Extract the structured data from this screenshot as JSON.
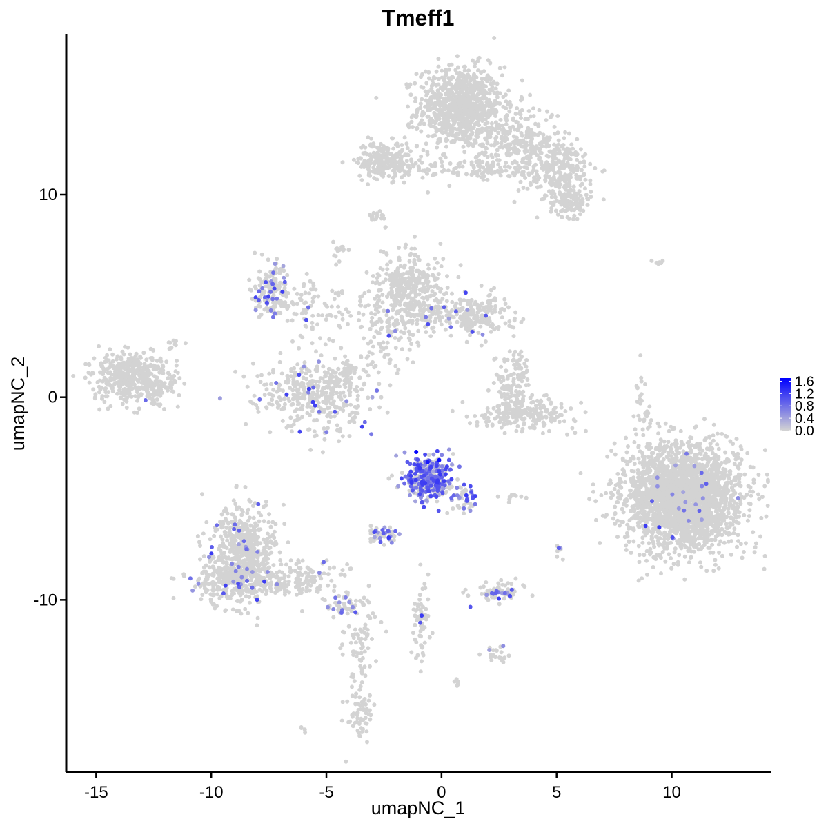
{
  "chart_data": {
    "type": "scatter",
    "title": "Tmeff1",
    "xlabel": "umapNC_1",
    "ylabel": "umapNC_2",
    "xlim": [
      -16.3,
      14.3
    ],
    "ylim": [
      -18.5,
      17.9
    ],
    "x_ticks": [
      -15,
      -10,
      -5,
      0,
      5,
      10
    ],
    "x_tick_labels": [
      "-15",
      "-10",
      "-5",
      "0",
      "5",
      "10"
    ],
    "y_ticks": [
      -10,
      0,
      10
    ],
    "y_tick_labels": [
      "-10",
      "0",
      "10"
    ],
    "grid": false,
    "legend": {
      "placement": "right",
      "labels": [
        "1.6",
        "1.2",
        "0.8",
        "0.4",
        "0.0"
      ],
      "values": [
        1.6,
        1.2,
        0.8,
        0.4,
        0.0
      ],
      "range": [
        0.0,
        1.7
      ]
    },
    "colors": {
      "low": "#d3d3d3",
      "high": "#0000ff"
    },
    "clusters": [
      {
        "cx": 0.8,
        "cy": 14.3,
        "sx": 0.9,
        "sy": 1.0,
        "n": 900,
        "expr": 0
      },
      {
        "cx": 5.0,
        "cy": 11.3,
        "sx": 0.9,
        "sy": 0.7,
        "n": 280,
        "expr": 0
      },
      {
        "cx": 5.6,
        "cy": 9.6,
        "sx": 0.45,
        "sy": 0.35,
        "n": 110,
        "expr": 0
      },
      {
        "cx": 3.3,
        "cy": 12.8,
        "sx": 0.9,
        "sy": 0.8,
        "n": 250,
        "expr": 0
      },
      {
        "cx": -2.5,
        "cy": 11.7,
        "sx": 0.6,
        "sy": 0.45,
        "n": 220,
        "expr": 0
      },
      {
        "cx": -1.0,
        "cy": 11.3,
        "sx": 1.2,
        "sy": 0.2,
        "n": 60,
        "expr": 0
      },
      {
        "cx": 1.8,
        "cy": 11.3,
        "sx": 0.4,
        "sy": 0.5,
        "n": 50,
        "expr": 0
      },
      {
        "cx": -2.7,
        "cy": 8.9,
        "sx": 0.2,
        "sy": 0.2,
        "n": 15,
        "expr": 0
      },
      {
        "cx": -4.4,
        "cy": 7.2,
        "sx": 0.15,
        "sy": 0.25,
        "n": 15,
        "expr": 0
      },
      {
        "cx": -7.4,
        "cy": 5.4,
        "sx": 0.35,
        "sy": 0.6,
        "n": 140,
        "expr": 0.18
      },
      {
        "cx": -6.5,
        "cy": 4.7,
        "sx": 0.8,
        "sy": 0.5,
        "n": 60,
        "expr": 0.15
      },
      {
        "cx": -5.0,
        "cy": 4.0,
        "sx": 1.0,
        "sy": 1.0,
        "n": 50,
        "expr": 0.03
      },
      {
        "cx": -1.5,
        "cy": 5.5,
        "sx": 0.8,
        "sy": 0.8,
        "n": 320,
        "expr": 0
      },
      {
        "cx": 1.5,
        "cy": 4.1,
        "sx": 0.8,
        "sy": 0.55,
        "n": 200,
        "expr": 0.03
      },
      {
        "cx": -1.2,
        "cy": 4.0,
        "sx": 1.3,
        "sy": 0.45,
        "n": 160,
        "expr": 0.02
      },
      {
        "cx": -2.5,
        "cy": 2.5,
        "sx": 0.7,
        "sy": 0.8,
        "n": 60,
        "expr": 0
      },
      {
        "cx": -5.4,
        "cy": 0.2,
        "sx": 1.2,
        "sy": 0.85,
        "n": 400,
        "expr": 0.03
      },
      {
        "cx": -4.1,
        "cy": 1.1,
        "sx": 0.25,
        "sy": 0.4,
        "n": 40,
        "expr": 0
      },
      {
        "cx": -13.5,
        "cy": 1.0,
        "sx": 0.8,
        "sy": 0.6,
        "n": 430,
        "expr": 0
      },
      {
        "cx": -12.5,
        "cy": 0.3,
        "sx": 0.5,
        "sy": 0.45,
        "n": 60,
        "expr": 0.03
      },
      {
        "cx": -11.6,
        "cy": 2.6,
        "sx": 0.2,
        "sy": 0.15,
        "n": 10,
        "expr": 0
      },
      {
        "cx": 3.1,
        "cy": 0.6,
        "sx": 0.4,
        "sy": 0.9,
        "n": 120,
        "expr": 0
      },
      {
        "cx": 3.7,
        "cy": -0.8,
        "sx": 1.1,
        "sy": 0.35,
        "n": 200,
        "expr": 0
      },
      {
        "cx": -0.6,
        "cy": -4.0,
        "sx": 0.55,
        "sy": 0.55,
        "n": 340,
        "expr": 0.6
      },
      {
        "cx": 1.0,
        "cy": -4.9,
        "sx": 0.25,
        "sy": 0.35,
        "n": 40,
        "expr": 0.5
      },
      {
        "cx": 10.5,
        "cy": -4.9,
        "sx": 1.3,
        "sy": 1.25,
        "n": 2600,
        "expr": 0.01
      },
      {
        "cx": 8.7,
        "cy": -0.4,
        "sx": 0.2,
        "sy": 0.8,
        "n": 25,
        "expr": 0
      },
      {
        "cx": 9.5,
        "cy": 6.7,
        "sx": 0.15,
        "sy": 0.1,
        "n": 6,
        "expr": 0
      },
      {
        "cx": -8.6,
        "cy": -7.7,
        "sx": 0.7,
        "sy": 1.2,
        "n": 550,
        "expr": 0.04
      },
      {
        "cx": -9.4,
        "cy": -9.0,
        "sx": 0.8,
        "sy": 0.5,
        "n": 200,
        "expr": 0.04
      },
      {
        "cx": -6.3,
        "cy": -9.0,
        "sx": 1.0,
        "sy": 0.5,
        "n": 150,
        "expr": 0.03
      },
      {
        "cx": -4.4,
        "cy": -10.3,
        "sx": 0.35,
        "sy": 0.3,
        "n": 40,
        "expr": 0.12
      },
      {
        "cx": -3.6,
        "cy": -12.5,
        "sx": 0.35,
        "sy": 1.5,
        "n": 90,
        "expr": 0
      },
      {
        "cx": -3.5,
        "cy": -15.8,
        "sx": 0.3,
        "sy": 0.6,
        "n": 50,
        "expr": 0
      },
      {
        "cx": -2.6,
        "cy": -6.8,
        "sx": 0.3,
        "sy": 0.2,
        "n": 50,
        "expr": 0.4
      },
      {
        "cx": -0.9,
        "cy": -11.0,
        "sx": 0.2,
        "sy": 1.1,
        "n": 60,
        "expr": 0.03
      },
      {
        "cx": 2.5,
        "cy": -9.6,
        "sx": 0.6,
        "sy": 0.25,
        "n": 80,
        "expr": 0.2
      },
      {
        "cx": 2.4,
        "cy": -12.7,
        "sx": 0.2,
        "sy": 0.2,
        "n": 20,
        "expr": 0.2
      },
      {
        "cx": 3.0,
        "cy": -4.9,
        "sx": 0.3,
        "sy": 0.1,
        "n": 10,
        "expr": 0
      },
      {
        "cx": 5.1,
        "cy": -7.5,
        "sx": 0.1,
        "sy": 0.2,
        "n": 8,
        "expr": 0.4
      },
      {
        "cx": 0.6,
        "cy": -14.1,
        "sx": 0.15,
        "sy": 0.1,
        "n": 6,
        "expr": 0
      },
      {
        "cx": -6.0,
        "cy": -16.4,
        "sx": 0.1,
        "sy": 0.1,
        "n": 4,
        "expr": 0
      }
    ]
  }
}
